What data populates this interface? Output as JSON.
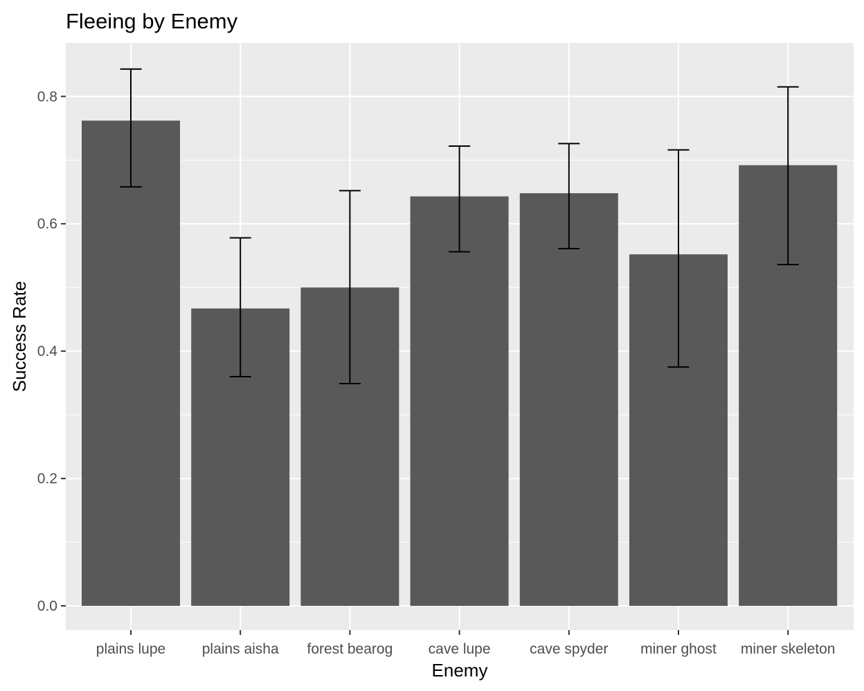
{
  "chart_data": {
    "type": "bar",
    "title": "Fleeing by Enemy",
    "xlabel": "Enemy",
    "ylabel": "Success Rate",
    "categories": [
      "plains lupe",
      "plains aisha",
      "forest bearog",
      "cave lupe",
      "cave spyder",
      "miner ghost",
      "miner skeleton"
    ],
    "values": [
      0.762,
      0.467,
      0.5,
      0.643,
      0.648,
      0.552,
      0.692
    ],
    "error_lower": [
      0.658,
      0.36,
      0.349,
      0.556,
      0.561,
      0.375,
      0.536
    ],
    "error_upper": [
      0.843,
      0.578,
      0.652,
      0.722,
      0.726,
      0.716,
      0.815
    ],
    "ylim": [
      -0.038,
      0.884
    ],
    "yticks": [
      0.0,
      0.2,
      0.4,
      0.6,
      0.8
    ],
    "ytick_labels": [
      "0.0",
      "0.2",
      "0.4",
      "0.6",
      "0.8"
    ],
    "grid": true,
    "colors": {
      "panel": "#ebebeb",
      "bar": "#595959",
      "grid": "#ffffff",
      "errorbar": "#000000"
    }
  }
}
